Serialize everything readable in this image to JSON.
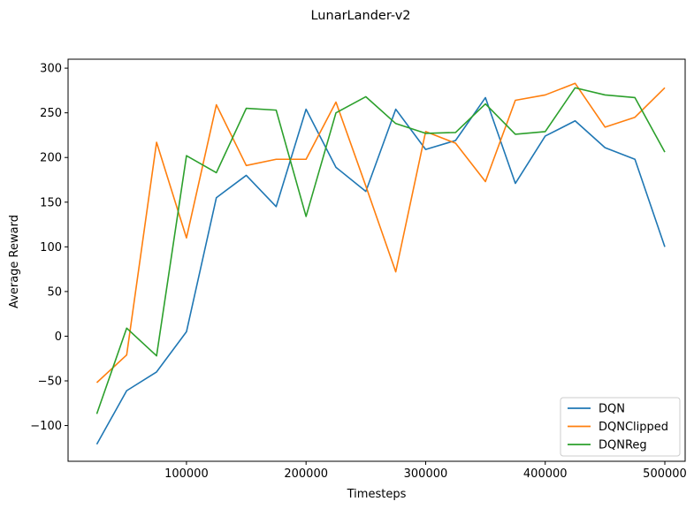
{
  "chart_data": {
    "type": "line",
    "title": "LunarLander-v2",
    "xlabel": "Timesteps",
    "ylabel": "Average Reward",
    "xlim": [
      1000,
      517000
    ],
    "ylim": [
      -140,
      310
    ],
    "xticks": [
      100000,
      200000,
      300000,
      400000,
      500000
    ],
    "xtick_labels": [
      "100000",
      "200000",
      "300000",
      "400000",
      "500000"
    ],
    "yticks": [
      -100,
      -50,
      0,
      50,
      100,
      150,
      200,
      250,
      300
    ],
    "ytick_labels": [
      "−100",
      "−50",
      "0",
      "50",
      "100",
      "150",
      "200",
      "250",
      "300"
    ],
    "grid": false,
    "legend_position": "bottom-right",
    "x": [
      25000,
      50000,
      75000,
      100000,
      125000,
      150000,
      175000,
      200000,
      225000,
      250000,
      275000,
      300000,
      325000,
      350000,
      375000,
      400000,
      425000,
      450000,
      475000,
      500000
    ],
    "series": [
      {
        "name": "DQN",
        "color": "#1f77b4",
        "values": [
          -121,
          -61,
          -40,
          5,
          155,
          180,
          145,
          254,
          189,
          162,
          254,
          209,
          219,
          267,
          171,
          224,
          241,
          211,
          198,
          100
        ]
      },
      {
        "name": "DQNClipped",
        "color": "#ff7f0e",
        "values": [
          -52,
          -21,
          217,
          110,
          259,
          191,
          198,
          198,
          262,
          168,
          72,
          229,
          216,
          173,
          264,
          270,
          283,
          234,
          245,
          278
        ]
      },
      {
        "name": "DQNReg",
        "color": "#2ca02c",
        "values": [
          -87,
          9,
          -22,
          202,
          183,
          255,
          253,
          134,
          250,
          268,
          238,
          227,
          228,
          260,
          226,
          229,
          278,
          270,
          267,
          206
        ]
      }
    ]
  }
}
